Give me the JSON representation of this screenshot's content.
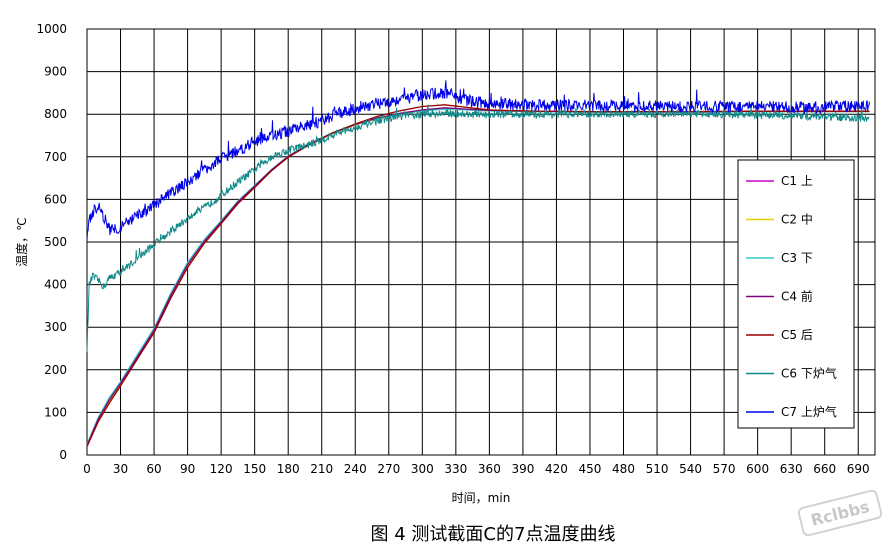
{
  "chart_data": {
    "type": "line",
    "title": "",
    "caption": "图 4 测试截面C的7点温度曲线",
    "xlabel": "时间，min",
    "ylabel": "温度，℃",
    "xlim": [
      0,
      705
    ],
    "ylim": [
      0,
      1000
    ],
    "xticks": [
      0,
      30,
      60,
      90,
      120,
      150,
      180,
      210,
      240,
      270,
      300,
      330,
      360,
      390,
      420,
      450,
      480,
      510,
      540,
      570,
      600,
      630,
      660,
      690
    ],
    "yticks": [
      0,
      100,
      200,
      300,
      400,
      500,
      600,
      700,
      800,
      900,
      1000
    ],
    "grid": true,
    "legend_position": "right",
    "series": [
      {
        "name": "C1 上",
        "color": "#cc00cc",
        "noise": 0,
        "x": [
          0,
          10,
          20,
          30,
          45,
          60,
          75,
          90,
          105,
          120,
          135,
          150,
          165,
          180,
          200,
          220,
          240,
          260,
          280,
          300,
          320,
          340,
          360,
          400,
          450,
          500,
          550,
          600,
          650,
          700
        ],
        "y": [
          20,
          80,
          125,
          165,
          228,
          290,
          372,
          445,
          500,
          545,
          592,
          630,
          668,
          700,
          730,
          755,
          775,
          790,
          800,
          808,
          812,
          810,
          808,
          806,
          805,
          805,
          805,
          806,
          806,
          806
        ]
      },
      {
        "name": "C2 中",
        "color": "#e6d200",
        "noise": 0,
        "x": [
          0,
          10,
          20,
          30,
          45,
          60,
          75,
          90,
          105,
          120,
          135,
          150,
          165,
          180,
          200,
          220,
          240,
          260,
          280,
          300,
          320,
          340,
          360,
          400,
          450,
          500,
          550,
          600,
          650,
          700
        ],
        "y": [
          20,
          80,
          125,
          165,
          228,
          290,
          372,
          445,
          500,
          545,
          592,
          630,
          668,
          700,
          730,
          755,
          775,
          790,
          800,
          808,
          812,
          810,
          808,
          806,
          805,
          805,
          805,
          806,
          806,
          806
        ]
      },
      {
        "name": "C3 下",
        "color": "#33cccc",
        "noise": 0,
        "x": [
          0,
          10,
          20,
          30,
          45,
          60,
          75,
          90,
          105,
          120,
          135,
          150,
          165,
          180,
          200,
          220,
          240,
          260,
          280,
          300,
          320,
          340,
          360,
          400,
          450,
          500,
          550,
          600,
          650,
          700
        ],
        "y": [
          25,
          88,
          135,
          172,
          235,
          298,
          380,
          452,
          506,
          550,
          596,
          633,
          670,
          702,
          732,
          757,
          777,
          792,
          801,
          808,
          812,
          810,
          808,
          806,
          805,
          805,
          805,
          806,
          806,
          806
        ]
      },
      {
        "name": "C4 前",
        "color": "#800080",
        "noise": 0,
        "x": [
          0,
          10,
          20,
          30,
          45,
          60,
          75,
          90,
          105,
          120,
          135,
          150,
          165,
          180,
          200,
          220,
          240,
          260,
          280,
          300,
          320,
          340,
          360,
          400,
          450,
          500,
          550,
          600,
          650,
          700
        ],
        "y": [
          22,
          84,
          130,
          168,
          230,
          293,
          375,
          447,
          502,
          547,
          594,
          631,
          669,
          701,
          731,
          756,
          776,
          791,
          802,
          810,
          815,
          812,
          809,
          807,
          806,
          806,
          806,
          807,
          807,
          807
        ]
      },
      {
        "name": "C5 后",
        "color": "#990000",
        "noise": 0,
        "x": [
          0,
          10,
          20,
          30,
          45,
          60,
          75,
          90,
          105,
          120,
          135,
          150,
          165,
          180,
          200,
          220,
          240,
          260,
          280,
          300,
          320,
          340,
          360,
          400,
          450,
          500,
          550,
          600,
          650,
          700
        ],
        "y": [
          20,
          78,
          122,
          162,
          225,
          287,
          368,
          440,
          497,
          543,
          590,
          628,
          667,
          699,
          730,
          756,
          777,
          795,
          808,
          818,
          822,
          816,
          810,
          807,
          806,
          806,
          806,
          807,
          807,
          807
        ]
      },
      {
        "name": "C6 下炉气",
        "color": "#138a8a",
        "noise": 9,
        "x": [
          0,
          2,
          5,
          10,
          15,
          20,
          30,
          45,
          60,
          75,
          90,
          105,
          120,
          135,
          150,
          165,
          180,
          200,
          220,
          240,
          260,
          280,
          300,
          320,
          340,
          360,
          400,
          450,
          500,
          550,
          600,
          650,
          700
        ],
        "y": [
          250,
          400,
          420,
          410,
          395,
          415,
          430,
          460,
          495,
          525,
          555,
          580,
          610,
          640,
          670,
          700,
          715,
          730,
          750,
          770,
          785,
          795,
          800,
          802,
          800,
          799,
          800,
          800,
          801,
          801,
          798,
          795,
          790
        ]
      },
      {
        "name": "C7 上炉气",
        "color": "#0000e6",
        "noise": 14,
        "x": [
          0,
          2,
          5,
          10,
          15,
          20,
          30,
          45,
          60,
          75,
          90,
          105,
          120,
          135,
          150,
          165,
          180,
          200,
          220,
          240,
          260,
          280,
          300,
          320,
          340,
          360,
          400,
          450,
          500,
          550,
          600,
          650,
          700
        ],
        "y": [
          500,
          550,
          570,
          585,
          560,
          530,
          535,
          560,
          585,
          615,
          640,
          670,
          695,
          715,
          735,
          750,
          760,
          775,
          795,
          815,
          825,
          835,
          845,
          850,
          832,
          825,
          822,
          820,
          818,
          818,
          818,
          815,
          820
        ]
      }
    ]
  },
  "watermark": {
    "text": "Rclbbs"
  }
}
